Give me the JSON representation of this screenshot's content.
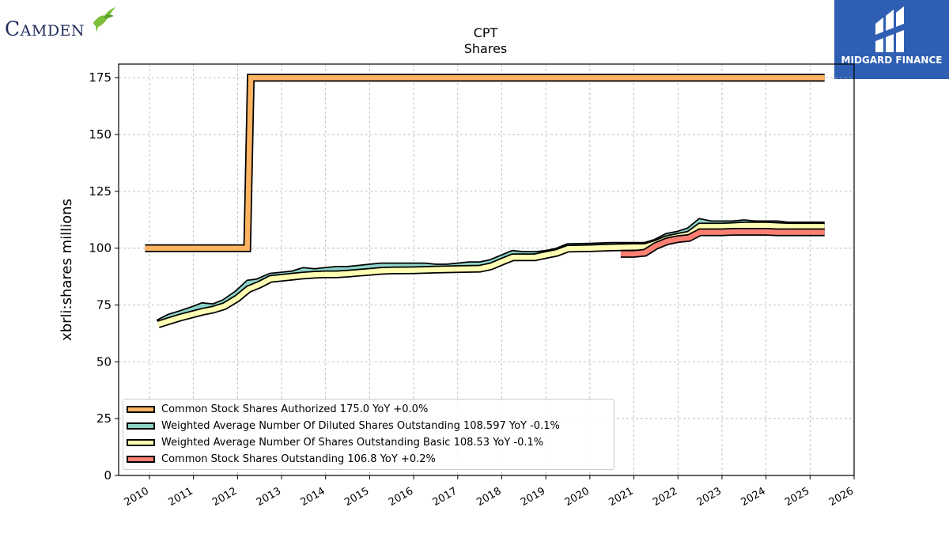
{
  "logos": {
    "left_brand": "Camden",
    "right_brand": "MIDGARD FINANCE"
  },
  "chart_data": {
    "type": "line",
    "title": "CPT",
    "subtitle": "Shares",
    "ylabel": "xbrli:shares millions",
    "xlabel": "",
    "xlim": [
      2009.3,
      2026.0
    ],
    "ylim": [
      0,
      181
    ],
    "x_ticks": [
      "2010",
      "2011",
      "2012",
      "2013",
      "2014",
      "2015",
      "2016",
      "2017",
      "2018",
      "2019",
      "2020",
      "2021",
      "2022",
      "2023",
      "2024",
      "2025",
      "2026"
    ],
    "y_ticks": [
      "0",
      "25",
      "50",
      "75",
      "100",
      "125",
      "150",
      "175"
    ],
    "grid": true,
    "legend_position": "lower-left",
    "series": [
      {
        "name": "Common Stock Shares Authorized",
        "legend": "Common Stock Shares Authorized  175.0 YoY +0.0%",
        "color": "#fdb462",
        "points": [
          [
            2009.9,
            100
          ],
          [
            2012.22,
            100
          ],
          [
            2012.3,
            175
          ],
          [
            2025.33,
            175
          ]
        ]
      },
      {
        "name": "Weighted Average Number Of Diluted Shares Outstanding",
        "legend": "Weighted Average Number Of Diluted Shares Outstanding  108.597 YoY -0.1%",
        "color": "#8dd3c7",
        "points": [
          [
            2010.2,
            67
          ],
          [
            2010.45,
            69.5
          ],
          [
            2010.7,
            71
          ],
          [
            2011.0,
            73
          ],
          [
            2011.2,
            74.5
          ],
          [
            2011.45,
            74
          ],
          [
            2011.7,
            76
          ],
          [
            2012.0,
            80
          ],
          [
            2012.25,
            84.5
          ],
          [
            2012.45,
            85
          ],
          [
            2012.75,
            87.5
          ],
          [
            2013.0,
            88
          ],
          [
            2013.25,
            88.5
          ],
          [
            2013.5,
            90
          ],
          [
            2013.75,
            89.5
          ],
          [
            2014.0,
            90
          ],
          [
            2014.25,
            90.5
          ],
          [
            2014.5,
            90.5
          ],
          [
            2014.75,
            91
          ],
          [
            2015.0,
            91.5
          ],
          [
            2015.25,
            92
          ],
          [
            2015.5,
            92
          ],
          [
            2016.0,
            92
          ],
          [
            2016.25,
            92
          ],
          [
            2016.5,
            91.5
          ],
          [
            2016.75,
            91.5
          ],
          [
            2017.0,
            92
          ],
          [
            2017.25,
            92.5
          ],
          [
            2017.5,
            92.5
          ],
          [
            2017.75,
            93.5
          ],
          [
            2018.0,
            95.5
          ],
          [
            2018.25,
            97.5
          ],
          [
            2018.5,
            97
          ],
          [
            2018.75,
            97
          ],
          [
            2019.0,
            97.5
          ],
          [
            2019.25,
            98.5
          ],
          [
            2019.5,
            100.5
          ],
          [
            2020.0,
            100.7
          ],
          [
            2020.5,
            101
          ],
          [
            2021.0,
            101
          ],
          [
            2021.25,
            101
          ],
          [
            2021.5,
            102.5
          ],
          [
            2021.75,
            105
          ],
          [
            2022.0,
            106
          ],
          [
            2022.25,
            107.5
          ],
          [
            2022.5,
            111.5
          ],
          [
            2022.75,
            110.5
          ],
          [
            2023.0,
            110.5
          ],
          [
            2023.25,
            110.5
          ],
          [
            2023.5,
            111
          ],
          [
            2023.75,
            110.5
          ],
          [
            2024.0,
            110.5
          ],
          [
            2024.25,
            110.5
          ],
          [
            2024.5,
            110
          ],
          [
            2025.33,
            110
          ]
        ]
      },
      {
        "name": "Weighted Average Number Of Shares Outstanding Basic",
        "legend": "Weighted Average Number Of Shares Outstanding Basic  108.53 YoY -0.1%",
        "color": "#ffffb3",
        "points": [
          [
            2010.2,
            66.5
          ],
          [
            2010.45,
            68
          ],
          [
            2010.7,
            69.5
          ],
          [
            2011.0,
            71
          ],
          [
            2011.2,
            72
          ],
          [
            2011.45,
            73
          ],
          [
            2011.7,
            74.5
          ],
          [
            2012.0,
            78
          ],
          [
            2012.25,
            82
          ],
          [
            2012.5,
            84
          ],
          [
            2012.75,
            86.5
          ],
          [
            2013.0,
            87
          ],
          [
            2013.25,
            87.5
          ],
          [
            2013.5,
            88
          ],
          [
            2013.75,
            88.3
          ],
          [
            2014.0,
            88.5
          ],
          [
            2014.25,
            88.5
          ],
          [
            2014.5,
            88.8
          ],
          [
            2014.75,
            89.2
          ],
          [
            2015.0,
            89.6
          ],
          [
            2015.25,
            90
          ],
          [
            2015.5,
            90.2
          ],
          [
            2016.0,
            90.3
          ],
          [
            2016.5,
            90.6
          ],
          [
            2017.0,
            90.8
          ],
          [
            2017.5,
            91
          ],
          [
            2017.75,
            92
          ],
          [
            2018.0,
            94
          ],
          [
            2018.25,
            96
          ],
          [
            2018.5,
            96
          ],
          [
            2018.75,
            96
          ],
          [
            2019.0,
            97
          ],
          [
            2019.25,
            98
          ],
          [
            2019.5,
            99.8
          ],
          [
            2020.0,
            100
          ],
          [
            2020.5,
            100.3
          ],
          [
            2021.0,
            100.5
          ],
          [
            2021.25,
            100.5
          ],
          [
            2021.5,
            102
          ],
          [
            2021.75,
            104
          ],
          [
            2022.0,
            105
          ],
          [
            2022.25,
            106
          ],
          [
            2022.5,
            109.5
          ],
          [
            2022.75,
            109.5
          ],
          [
            2023.0,
            109.5
          ],
          [
            2023.25,
            109.7
          ],
          [
            2023.5,
            110
          ],
          [
            2023.75,
            110
          ],
          [
            2024.0,
            110
          ],
          [
            2024.5,
            109.5
          ],
          [
            2025.33,
            109.5
          ]
        ]
      },
      {
        "name": "Common Stock Shares Outstanding",
        "legend": "Common Stock Shares Outstanding  106.8 YoY +0.2%",
        "color": "#fb8072",
        "points": [
          [
            2020.7,
            97.5
          ],
          [
            2021.0,
            97.5
          ],
          [
            2021.25,
            98
          ],
          [
            2021.5,
            101
          ],
          [
            2021.75,
            103
          ],
          [
            2022.0,
            104
          ],
          [
            2022.25,
            104.5
          ],
          [
            2022.5,
            107
          ],
          [
            2022.75,
            107
          ],
          [
            2023.0,
            107
          ],
          [
            2023.25,
            107.2
          ],
          [
            2023.5,
            107.2
          ],
          [
            2024.0,
            107.2
          ],
          [
            2024.25,
            107
          ],
          [
            2024.5,
            107
          ],
          [
            2025.33,
            107
          ]
        ]
      }
    ]
  }
}
